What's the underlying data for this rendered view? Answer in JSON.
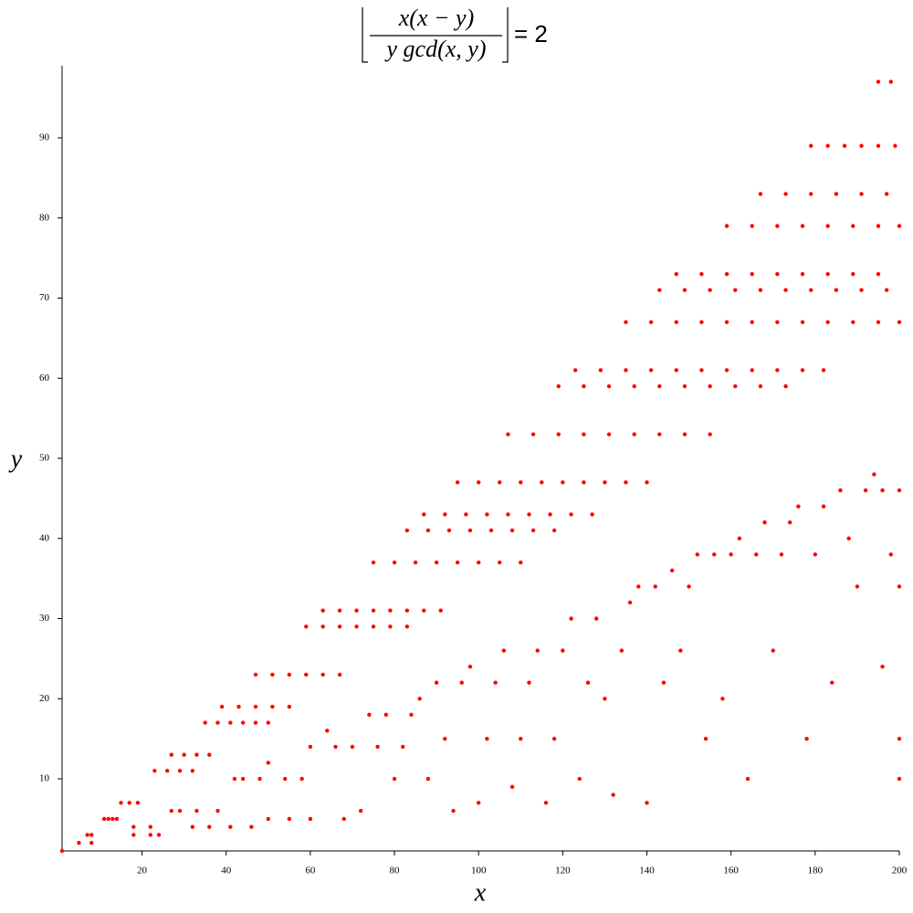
{
  "chart_data": {
    "type": "scatter",
    "title_numerator": "x(x − y)",
    "title_denominator": "y gcd(x, y)",
    "title_rhs": "= 2",
    "x_label": "x",
    "y_label": "y",
    "color": "#ff0000",
    "xlim": [
      1,
      200
    ],
    "ylim": [
      1,
      99
    ],
    "xticks": [
      20,
      40,
      60,
      80,
      100,
      120,
      140,
      160,
      180,
      200
    ],
    "yticks": [
      10,
      20,
      30,
      40,
      50,
      60,
      70,
      80,
      90
    ],
    "x": [
      1,
      5,
      8,
      7,
      8,
      11,
      12,
      13,
      14,
      15,
      17,
      19,
      23,
      26,
      29,
      32,
      27,
      30,
      33,
      36,
      35,
      38,
      41,
      44,
      47,
      50,
      39,
      43,
      47,
      51,
      55,
      47,
      51,
      55,
      59,
      63,
      67,
      59,
      63,
      67,
      71,
      75,
      79,
      83,
      63,
      67,
      71,
      75,
      79,
      83,
      87,
      91,
      75,
      80,
      85,
      90,
      95,
      100,
      105,
      110,
      83,
      88,
      93,
      98,
      103,
      108,
      113,
      118,
      87,
      92,
      97,
      102,
      107,
      112,
      117,
      122,
      127,
      95,
      100,
      105,
      110,
      115,
      120,
      125,
      130,
      135,
      140,
      107,
      113,
      119,
      125,
      131,
      137,
      143,
      149,
      155,
      119,
      125,
      131,
      137,
      143,
      149,
      155,
      161,
      167,
      173,
      123,
      129,
      135,
      141,
      147,
      153,
      159,
      165,
      171,
      177,
      182,
      135,
      141,
      147,
      153,
      159,
      165,
      171,
      177,
      183,
      189,
      195,
      200,
      143,
      149,
      155,
      161,
      167,
      173,
      179,
      185,
      191,
      197,
      147,
      153,
      159,
      165,
      171,
      177,
      183,
      189,
      195,
      159,
      165,
      171,
      177,
      183,
      189,
      195,
      200,
      167,
      173,
      179,
      185,
      191,
      197,
      179,
      183,
      187,
      191,
      195,
      199,
      195,
      198,
      18,
      18,
      22,
      22,
      24,
      27,
      29,
      32,
      33,
      36,
      38,
      41,
      42,
      44,
      46,
      48,
      50,
      50,
      54,
      55,
      58,
      60,
      60,
      64,
      66,
      68,
      70,
      72,
      74,
      76,
      78,
      80,
      82,
      84,
      86,
      88,
      90,
      92,
      94,
      96,
      98,
      100,
      102,
      104,
      106,
      108,
      110,
      112,
      114,
      116,
      118,
      120,
      122,
      124,
      126,
      128,
      130,
      132,
      134,
      136,
      138,
      140,
      142,
      144,
      146,
      148,
      150,
      152,
      154,
      156,
      158,
      160,
      162,
      164,
      166,
      168,
      170,
      172,
      174,
      176,
      178,
      180,
      182,
      184,
      186,
      188,
      190,
      192,
      194,
      196,
      198,
      200,
      200,
      196,
      200,
      200
    ],
    "values": [
      1,
      2,
      2,
      3,
      3,
      5,
      5,
      5,
      5,
      7,
      7,
      7,
      11,
      11,
      11,
      11,
      13,
      13,
      13,
      13,
      17,
      17,
      17,
      17,
      17,
      17,
      19,
      19,
      19,
      19,
      19,
      23,
      23,
      23,
      23,
      23,
      23,
      29,
      29,
      29,
      29,
      29,
      29,
      29,
      31,
      31,
      31,
      31,
      31,
      31,
      31,
      31,
      37,
      37,
      37,
      37,
      37,
      37,
      37,
      37,
      41,
      41,
      41,
      41,
      41,
      41,
      41,
      41,
      43,
      43,
      43,
      43,
      43,
      43,
      43,
      43,
      43,
      47,
      47,
      47,
      47,
      47,
      47,
      47,
      47,
      47,
      47,
      53,
      53,
      53,
      53,
      53,
      53,
      53,
      53,
      53,
      59,
      59,
      59,
      59,
      59,
      59,
      59,
      59,
      59,
      59,
      61,
      61,
      61,
      61,
      61,
      61,
      61,
      61,
      61,
      61,
      61,
      67,
      67,
      67,
      67,
      67,
      67,
      67,
      67,
      67,
      67,
      67,
      67,
      71,
      71,
      71,
      71,
      71,
      71,
      71,
      71,
      71,
      71,
      73,
      73,
      73,
      73,
      73,
      73,
      73,
      73,
      73,
      79,
      79,
      79,
      79,
      79,
      79,
      79,
      79,
      83,
      83,
      83,
      83,
      83,
      83,
      89,
      89,
      89,
      89,
      89,
      89,
      97,
      97,
      3,
      4,
      3,
      4,
      3,
      6,
      6,
      4,
      6,
      4,
      6,
      4,
      10,
      10,
      4,
      10,
      5,
      12,
      10,
      5,
      10,
      14,
      5,
      16,
      14,
      5,
      14,
      6,
      18,
      14,
      18,
      10,
      14,
      18,
      20,
      10,
      22,
      15,
      6,
      22,
      24,
      7,
      15,
      22,
      26,
      9,
      15,
      22,
      26,
      7,
      15,
      26,
      30,
      10,
      22,
      30,
      20,
      8,
      26,
      32,
      34,
      7,
      34,
      22,
      36,
      26,
      34,
      38,
      15,
      38,
      20,
      38,
      40,
      10,
      38,
      42,
      26,
      38,
      42,
      44,
      15,
      38,
      44,
      22,
      46,
      40,
      34,
      46,
      48,
      24,
      38,
      46,
      10,
      46,
      34,
      15
    ]
  }
}
